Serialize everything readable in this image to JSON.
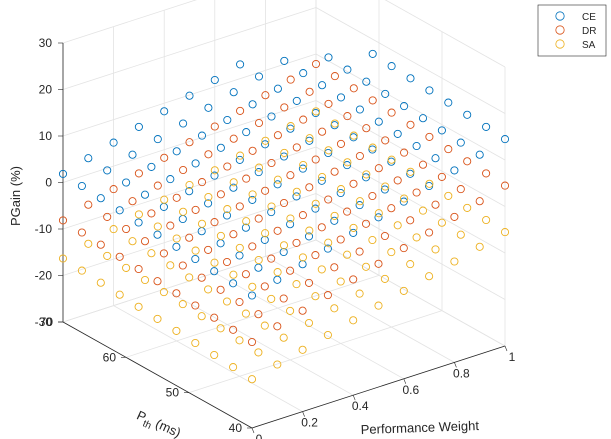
{
  "chart_data": {
    "type": "scatter",
    "projection": "3d",
    "grid": true,
    "legend_placement": "top-right",
    "xlabel": "Performance Weight",
    "ylabel_base": "P",
    "ylabel_sub": "th",
    "ylabel_unit": " (ms)",
    "zlabel": "PGain (%)",
    "xlim": [
      0,
      1
    ],
    "ylim": [
      40,
      70
    ],
    "zlim": [
      -30,
      30
    ],
    "x_ticks": [
      0,
      0.2,
      0.4,
      0.6,
      0.8,
      1
    ],
    "x_tick_labels": [
      "0",
      "0.2",
      "0.4",
      "0.6",
      "0.8",
      "1"
    ],
    "y_ticks": [
      40,
      50,
      60,
      70
    ],
    "y_tick_labels": [
      "40",
      "50",
      "60",
      "70"
    ],
    "z_ticks": [
      -30,
      -20,
      -10,
      0,
      10,
      20,
      30
    ],
    "z_tick_labels": [
      "-30",
      "-20",
      "-10",
      "0",
      "10",
      "20",
      "30"
    ],
    "x_grid_values": [
      0,
      0.1,
      0.2,
      0.3,
      0.4,
      0.5,
      0.6,
      0.7,
      0.8,
      0.9,
      1
    ],
    "y_grid_values": [
      40,
      43,
      46,
      49,
      52,
      55,
      58,
      61,
      64,
      67,
      70
    ],
    "series": [
      {
        "name": "CE",
        "color": "#0072BD",
        "z_base": -1.5,
        "z_slope_x": 16,
        "z_slope_y": 0.32
      },
      {
        "name": "DR",
        "color": "#D95319",
        "z_base": -11.5,
        "z_slope_x": 16,
        "z_slope_y": 0.32
      },
      {
        "name": "SA",
        "color": "#EDB120",
        "z_base": -19.5,
        "z_slope_x": 14,
        "z_slope_y": 0.3
      }
    ]
  }
}
